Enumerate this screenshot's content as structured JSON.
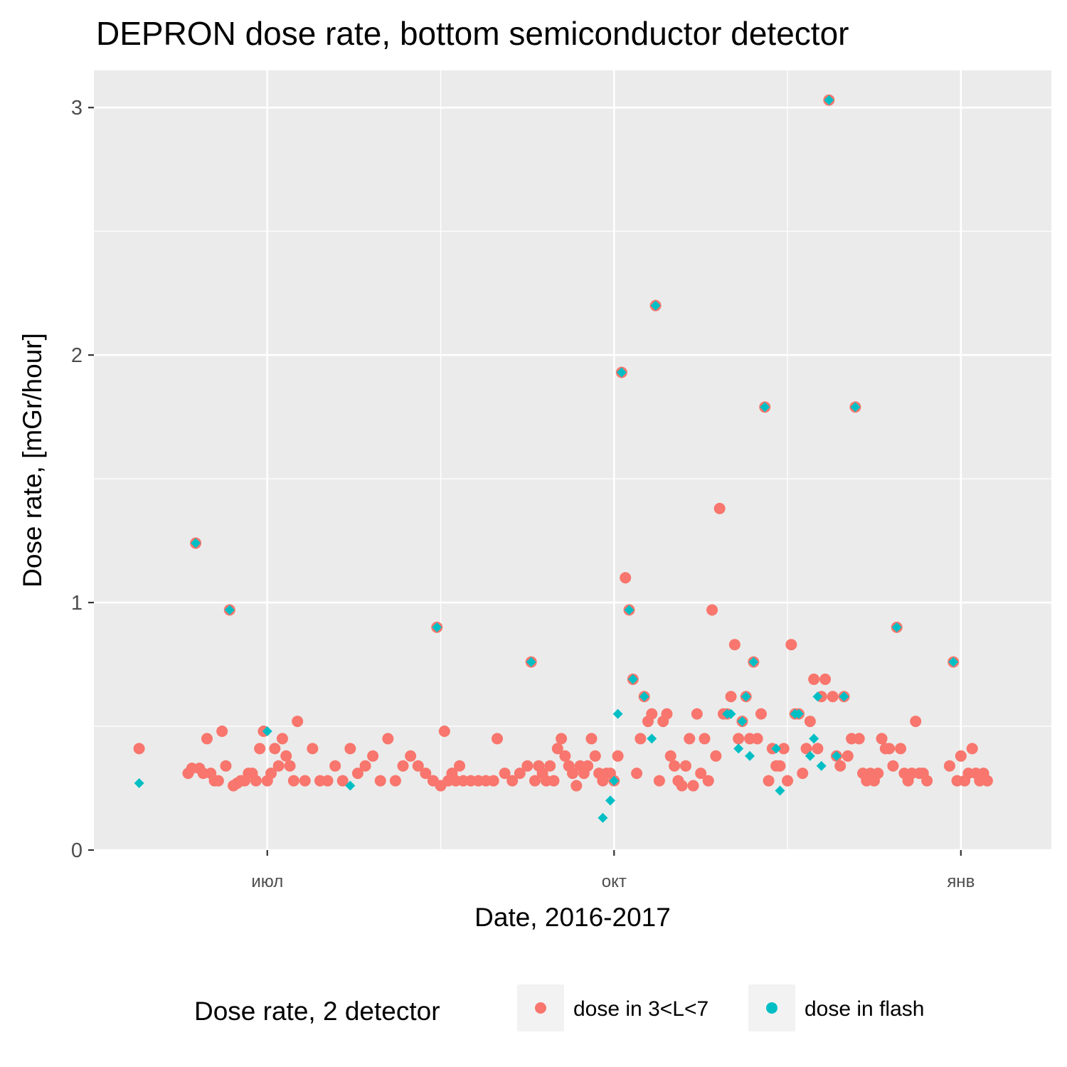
{
  "chart_data": {
    "type": "scatter",
    "title": "DEPRON dose rate, bottom semiconductor detector",
    "xlabel": "Date, 2016-2017",
    "ylabel": "Dose rate, [mGr/hour]",
    "x_type": "date",
    "xlim": [
      "2016-05-16",
      "2017-01-25"
    ],
    "ylim": [
      0,
      3.15
    ],
    "x_ticks": [
      {
        "date": "2016-07-01",
        "label": "июл"
      },
      {
        "date": "2016-10-01",
        "label": "окт"
      },
      {
        "date": "2017-01-01",
        "label": "янв"
      }
    ],
    "y_ticks": [
      0,
      1,
      2,
      3
    ],
    "grid": true,
    "legend": {
      "title": "Dose rate, 2 detector",
      "position": "bottom"
    },
    "series": [
      {
        "name": "dose in 3<L<7",
        "color": "#f8766d",
        "marker": "circle",
        "points": [
          [
            "2016-05-28",
            0.41
          ],
          [
            "2016-06-10",
            0.31
          ],
          [
            "2016-06-11",
            0.33
          ],
          [
            "2016-06-12",
            1.24
          ],
          [
            "2016-06-13",
            0.33
          ],
          [
            "2016-06-14",
            0.31
          ],
          [
            "2016-06-15",
            0.45
          ],
          [
            "2016-06-16",
            0.31
          ],
          [
            "2016-06-17",
            0.28
          ],
          [
            "2016-06-18",
            0.28
          ],
          [
            "2016-06-19",
            0.48
          ],
          [
            "2016-06-20",
            0.34
          ],
          [
            "2016-06-21",
            0.97
          ],
          [
            "2016-06-22",
            0.26
          ],
          [
            "2016-06-23",
            0.27
          ],
          [
            "2016-06-24",
            0.28
          ],
          [
            "2016-06-25",
            0.28
          ],
          [
            "2016-06-26",
            0.31
          ],
          [
            "2016-06-27",
            0.31
          ],
          [
            "2016-06-28",
            0.28
          ],
          [
            "2016-06-29",
            0.41
          ],
          [
            "2016-06-30",
            0.48
          ],
          [
            "2016-07-01",
            0.28
          ],
          [
            "2016-07-02",
            0.31
          ],
          [
            "2016-07-03",
            0.41
          ],
          [
            "2016-07-04",
            0.34
          ],
          [
            "2016-07-05",
            0.45
          ],
          [
            "2016-07-06",
            0.38
          ],
          [
            "2016-07-07",
            0.34
          ],
          [
            "2016-07-08",
            0.28
          ],
          [
            "2016-07-09",
            0.52
          ],
          [
            "2016-07-11",
            0.28
          ],
          [
            "2016-07-13",
            0.41
          ],
          [
            "2016-07-15",
            0.28
          ],
          [
            "2016-07-17",
            0.28
          ],
          [
            "2016-07-19",
            0.34
          ],
          [
            "2016-07-21",
            0.28
          ],
          [
            "2016-07-23",
            0.41
          ],
          [
            "2016-07-25",
            0.31
          ],
          [
            "2016-07-27",
            0.34
          ],
          [
            "2016-07-29",
            0.38
          ],
          [
            "2016-07-31",
            0.28
          ],
          [
            "2016-08-02",
            0.45
          ],
          [
            "2016-08-04",
            0.28
          ],
          [
            "2016-08-06",
            0.34
          ],
          [
            "2016-08-08",
            0.38
          ],
          [
            "2016-08-10",
            0.34
          ],
          [
            "2016-08-12",
            0.31
          ],
          [
            "2016-08-14",
            0.28
          ],
          [
            "2016-08-15",
            0.9
          ],
          [
            "2016-08-16",
            0.26
          ],
          [
            "2016-08-17",
            0.48
          ],
          [
            "2016-08-18",
            0.28
          ],
          [
            "2016-08-19",
            0.31
          ],
          [
            "2016-08-20",
            0.28
          ],
          [
            "2016-08-21",
            0.34
          ],
          [
            "2016-08-22",
            0.28
          ],
          [
            "2016-08-24",
            0.28
          ],
          [
            "2016-08-26",
            0.28
          ],
          [
            "2016-08-28",
            0.28
          ],
          [
            "2016-08-30",
            0.28
          ],
          [
            "2016-08-31",
            0.45
          ],
          [
            "2016-09-02",
            0.31
          ],
          [
            "2016-09-04",
            0.28
          ],
          [
            "2016-09-06",
            0.31
          ],
          [
            "2016-09-08",
            0.34
          ],
          [
            "2016-09-09",
            0.76
          ],
          [
            "2016-09-10",
            0.28
          ],
          [
            "2016-09-11",
            0.34
          ],
          [
            "2016-09-12",
            0.31
          ],
          [
            "2016-09-13",
            0.28
          ],
          [
            "2016-09-14",
            0.34
          ],
          [
            "2016-09-15",
            0.28
          ],
          [
            "2016-09-16",
            0.41
          ],
          [
            "2016-09-17",
            0.45
          ],
          [
            "2016-09-18",
            0.38
          ],
          [
            "2016-09-19",
            0.34
          ],
          [
            "2016-09-20",
            0.31
          ],
          [
            "2016-09-21",
            0.26
          ],
          [
            "2016-09-22",
            0.34
          ],
          [
            "2016-09-23",
            0.31
          ],
          [
            "2016-09-24",
            0.34
          ],
          [
            "2016-09-25",
            0.45
          ],
          [
            "2016-09-26",
            0.38
          ],
          [
            "2016-09-27",
            0.31
          ],
          [
            "2016-09-28",
            0.28
          ],
          [
            "2016-09-29",
            0.31
          ],
          [
            "2016-09-30",
            0.31
          ],
          [
            "2016-10-01",
            0.28
          ],
          [
            "2016-10-02",
            0.38
          ],
          [
            "2016-10-03",
            1.93
          ],
          [
            "2016-10-04",
            1.1
          ],
          [
            "2016-10-05",
            0.97
          ],
          [
            "2016-10-06",
            0.69
          ],
          [
            "2016-10-07",
            0.31
          ],
          [
            "2016-10-08",
            0.45
          ],
          [
            "2016-10-09",
            0.62
          ],
          [
            "2016-10-10",
            0.52
          ],
          [
            "2016-10-11",
            0.55
          ],
          [
            "2016-10-12",
            2.2
          ],
          [
            "2016-10-13",
            0.28
          ],
          [
            "2016-10-14",
            0.52
          ],
          [
            "2016-10-15",
            0.55
          ],
          [
            "2016-10-16",
            0.38
          ],
          [
            "2016-10-17",
            0.34
          ],
          [
            "2016-10-18",
            0.28
          ],
          [
            "2016-10-19",
            0.26
          ],
          [
            "2016-10-20",
            0.34
          ],
          [
            "2016-10-21",
            0.45
          ],
          [
            "2016-10-22",
            0.26
          ],
          [
            "2016-10-23",
            0.55
          ],
          [
            "2016-10-24",
            0.31
          ],
          [
            "2016-10-25",
            0.45
          ],
          [
            "2016-10-26",
            0.28
          ],
          [
            "2016-10-27",
            0.97
          ],
          [
            "2016-10-28",
            0.38
          ],
          [
            "2016-10-29",
            1.38
          ],
          [
            "2016-10-30",
            0.55
          ],
          [
            "2016-10-31",
            0.55
          ],
          [
            "2016-11-01",
            0.62
          ],
          [
            "2016-11-02",
            0.83
          ],
          [
            "2016-11-03",
            0.45
          ],
          [
            "2016-11-04",
            0.52
          ],
          [
            "2016-11-05",
            0.62
          ],
          [
            "2016-11-06",
            0.45
          ],
          [
            "2016-11-07",
            0.76
          ],
          [
            "2016-11-08",
            0.45
          ],
          [
            "2016-11-09",
            0.55
          ],
          [
            "2016-11-10",
            1.79
          ],
          [
            "2016-11-11",
            0.28
          ],
          [
            "2016-11-12",
            0.41
          ],
          [
            "2016-11-13",
            0.34
          ],
          [
            "2016-11-14",
            0.34
          ],
          [
            "2016-11-15",
            0.41
          ],
          [
            "2016-11-16",
            0.28
          ],
          [
            "2016-11-17",
            0.83
          ],
          [
            "2016-11-18",
            0.55
          ],
          [
            "2016-11-19",
            0.55
          ],
          [
            "2016-11-20",
            0.31
          ],
          [
            "2016-11-21",
            0.41
          ],
          [
            "2016-11-22",
            0.52
          ],
          [
            "2016-11-23",
            0.69
          ],
          [
            "2016-11-24",
            0.41
          ],
          [
            "2016-11-25",
            0.62
          ],
          [
            "2016-11-26",
            0.69
          ],
          [
            "2016-11-27",
            3.03
          ],
          [
            "2016-11-28",
            0.62
          ],
          [
            "2016-11-29",
            0.38
          ],
          [
            "2016-11-30",
            0.34
          ],
          [
            "2016-12-01",
            0.62
          ],
          [
            "2016-12-02",
            0.38
          ],
          [
            "2016-12-03",
            0.45
          ],
          [
            "2016-12-04",
            1.79
          ],
          [
            "2016-12-05",
            0.45
          ],
          [
            "2016-12-06",
            0.31
          ],
          [
            "2016-12-07",
            0.28
          ],
          [
            "2016-12-08",
            0.31
          ],
          [
            "2016-12-09",
            0.28
          ],
          [
            "2016-12-10",
            0.31
          ],
          [
            "2016-12-11",
            0.45
          ],
          [
            "2016-12-12",
            0.41
          ],
          [
            "2016-12-13",
            0.41
          ],
          [
            "2016-12-14",
            0.34
          ],
          [
            "2016-12-15",
            0.9
          ],
          [
            "2016-12-16",
            0.41
          ],
          [
            "2016-12-17",
            0.31
          ],
          [
            "2016-12-18",
            0.28
          ],
          [
            "2016-12-19",
            0.31
          ],
          [
            "2016-12-20",
            0.52
          ],
          [
            "2016-12-21",
            0.31
          ],
          [
            "2016-12-22",
            0.31
          ],
          [
            "2016-12-23",
            0.28
          ],
          [
            "2016-12-29",
            0.34
          ],
          [
            "2016-12-30",
            0.76
          ],
          [
            "2016-12-31",
            0.28
          ],
          [
            "2017-01-01",
            0.38
          ],
          [
            "2017-01-02",
            0.28
          ],
          [
            "2017-01-03",
            0.31
          ],
          [
            "2017-01-04",
            0.41
          ],
          [
            "2017-01-05",
            0.31
          ],
          [
            "2017-01-06",
            0.28
          ],
          [
            "2017-01-07",
            0.31
          ],
          [
            "2017-01-08",
            0.28
          ]
        ]
      },
      {
        "name": "dose in flash",
        "color": "#00bfc4",
        "marker": "diamond",
        "points": [
          [
            "2016-05-28",
            0.27
          ],
          [
            "2016-06-12",
            1.24
          ],
          [
            "2016-06-21",
            0.97
          ],
          [
            "2016-07-01",
            0.48
          ],
          [
            "2016-07-23",
            0.26
          ],
          [
            "2016-08-15",
            0.9
          ],
          [
            "2016-09-09",
            0.76
          ],
          [
            "2016-09-28",
            0.13
          ],
          [
            "2016-09-30",
            0.2
          ],
          [
            "2016-10-01",
            0.28
          ],
          [
            "2016-10-02",
            0.55
          ],
          [
            "2016-10-03",
            1.93
          ],
          [
            "2016-10-05",
            0.97
          ],
          [
            "2016-10-06",
            0.69
          ],
          [
            "2016-10-09",
            0.62
          ],
          [
            "2016-10-11",
            0.45
          ],
          [
            "2016-10-12",
            2.2
          ],
          [
            "2016-10-31",
            0.55
          ],
          [
            "2016-11-01",
            0.55
          ],
          [
            "2016-11-03",
            0.41
          ],
          [
            "2016-11-04",
            0.52
          ],
          [
            "2016-11-05",
            0.62
          ],
          [
            "2016-11-06",
            0.38
          ],
          [
            "2016-11-07",
            0.76
          ],
          [
            "2016-11-10",
            1.79
          ],
          [
            "2016-11-13",
            0.41
          ],
          [
            "2016-11-14",
            0.24
          ],
          [
            "2016-11-18",
            0.55
          ],
          [
            "2016-11-19",
            0.55
          ],
          [
            "2016-11-22",
            0.38
          ],
          [
            "2016-11-23",
            0.45
          ],
          [
            "2016-11-24",
            0.62
          ],
          [
            "2016-11-25",
            0.34
          ],
          [
            "2016-11-27",
            3.03
          ],
          [
            "2016-11-29",
            0.38
          ],
          [
            "2016-12-01",
            0.62
          ],
          [
            "2016-12-04",
            1.79
          ],
          [
            "2016-12-15",
            0.9
          ],
          [
            "2016-12-30",
            0.76
          ]
        ]
      }
    ]
  }
}
